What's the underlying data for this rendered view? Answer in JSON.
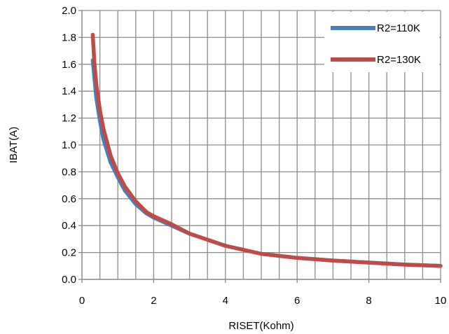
{
  "chart_data": {
    "type": "line",
    "title": "",
    "xlabel": "RISET(Kohm)",
    "ylabel": "IBAT(A)",
    "xlim": [
      0,
      10
    ],
    "ylim": [
      0.0,
      2.0
    ],
    "x_ticks": [
      0,
      2,
      4,
      6,
      8,
      10
    ],
    "x_tick_labels": [
      "0",
      "2",
      "4",
      "6",
      "8",
      "10"
    ],
    "y_ticks": [
      0.0,
      0.2,
      0.4,
      0.6,
      0.8,
      1.0,
      1.2,
      1.4,
      1.6,
      1.8,
      2.0
    ],
    "y_tick_labels": [
      "0.0",
      "0.2",
      "0.4",
      "0.6",
      "0.8",
      "1.0",
      "1.2",
      "1.4",
      "1.6",
      "1.8",
      "2.0"
    ],
    "x_minor_step": 0.5,
    "grid": true,
    "legend_position": "top-right",
    "series": [
      {
        "name": "R2=110K",
        "color": "#4a7ebb",
        "x": [
          0.3,
          0.4,
          0.5,
          0.6,
          0.8,
          1.0,
          1.2,
          1.5,
          1.8,
          2.0,
          2.5,
          3.0,
          4.0,
          5.0,
          6.0,
          7.0,
          8.0,
          9.0,
          10.0
        ],
        "y": [
          1.63,
          1.35,
          1.18,
          1.04,
          0.87,
          0.76,
          0.66,
          0.56,
          0.49,
          0.46,
          0.4,
          0.34,
          0.25,
          0.19,
          0.16,
          0.14,
          0.125,
          0.11,
          0.1
        ]
      },
      {
        "name": "R2=130K",
        "color": "#be4b48",
        "x": [
          0.3,
          0.35,
          0.4,
          0.5,
          0.6,
          0.8,
          1.0,
          1.2,
          1.5,
          1.8,
          2.0,
          2.5,
          3.0,
          4.0,
          5.0,
          6.0,
          7.0,
          8.0,
          9.0,
          10.0
        ],
        "y": [
          1.82,
          1.6,
          1.45,
          1.26,
          1.12,
          0.92,
          0.79,
          0.69,
          0.58,
          0.5,
          0.47,
          0.41,
          0.34,
          0.25,
          0.19,
          0.16,
          0.14,
          0.125,
          0.11,
          0.1
        ]
      }
    ]
  }
}
